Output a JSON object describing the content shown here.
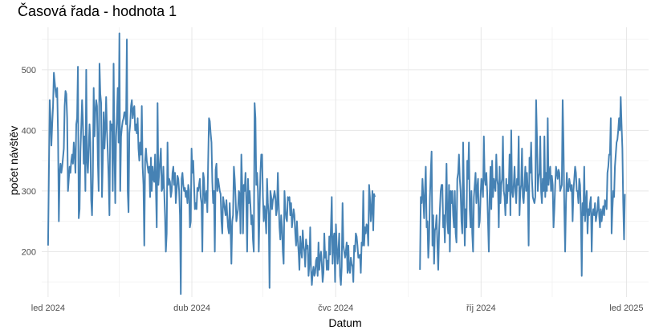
{
  "chart_data": {
    "type": "line",
    "title": "Časová řada - hodnota 1",
    "xlabel": "Datum",
    "ylabel": "počet návštěv",
    "x_ticks": [
      "led 2024",
      "dub 2024",
      "čvc 2024",
      "říj 2024",
      "led 2025"
    ],
    "y_ticks": [
      200,
      300,
      400,
      500
    ],
    "ylim": [
      125,
      570
    ],
    "xlim": [
      "2023-12-28",
      "2025-01-15"
    ],
    "grid": true,
    "colors": {
      "line": "#4682B4"
    },
    "series": [
      {
        "gap_after": "2024-07-26",
        "resume": "2024-08-23",
        "x_start": "2024-01-01",
        "x_end": "2024-12-31",
        "values": [
          210,
          330,
          450,
          420,
          375,
          410,
          440,
          495,
          480,
          465,
          455,
          470,
          395,
          250,
          330,
          345,
          330,
          340,
          355,
          370,
          440,
          465,
          460,
          420,
          300,
          320,
          340,
          330,
          350,
          360,
          345,
          380,
          360,
          330,
          410,
          420,
          505,
          255,
          270,
          365,
          405,
          450,
          415,
          345,
          390,
          300,
          500,
          350,
          330,
          370,
          410,
          380,
          285,
          260,
          325,
          470,
          390,
          430,
          450,
          440,
          350,
          300,
          510,
          460,
          445,
          290,
          350,
          430,
          370,
          400,
          455,
          400,
          365,
          320,
          260,
          415,
          400,
          410,
          300,
          510,
          370,
          280,
          390,
          420,
          470,
          380,
          560,
          300,
          390,
          405,
          415,
          420,
          430,
          430,
          410,
          550,
          300,
          265,
          395,
          410,
          440,
          450,
          420,
          435,
          440,
          400,
          410,
          395,
          420,
          370,
          350,
          380,
          360,
          440,
          340,
          310,
          210,
          350,
          370,
          350,
          340,
          330,
          340,
          290,
          355,
          300,
          340,
          320,
          315,
          360,
          305,
          240,
          445,
          310,
          330,
          350,
          370,
          300,
          305,
          340,
          300,
          260,
          200,
          230,
          380,
          310,
          320,
          315,
          290,
          300,
          330,
          340,
          310,
          330,
          280,
          300,
          325,
          320,
          300,
          260,
          130,
          320,
          330,
          310,
          300,
          305,
          290,
          300,
          280,
          310,
          300,
          240,
          250,
          370,
          330,
          350,
          310,
          270,
          280,
          270,
          305,
          300,
          310,
          320,
          290,
          280,
          200,
          330,
          320,
          280,
          290,
          300,
          265,
          350,
          420,
          415,
          395,
          380,
          315,
          280,
          300,
          200,
          335,
          345,
          300,
          320,
          310,
          300,
          295,
          250,
          230,
          290,
          280,
          270,
          260,
          285,
          260,
          240,
          230,
          280,
          240,
          180,
          250,
          260,
          340,
          320,
          290,
          250,
          260,
          270,
          300,
          295,
          230,
          360,
          310,
          230,
          310,
          300,
          330,
          280,
          200,
          320,
          280,
          300,
          275,
          245,
          260,
          220,
          200,
          445,
          420,
          310,
          330,
          300,
          200,
          270,
          330,
          360,
          360,
          290,
          250,
          275,
          260,
          230,
          320,
          280,
          260,
          140,
          300,
          290,
          270,
          285,
          290,
          300,
          290,
          260,
          270,
          330,
          280,
          240,
          220,
          260,
          240,
          200,
          180,
          300,
          270,
          255,
          250,
          290,
          285,
          290,
          260,
          280,
          240,
          255,
          270,
          260,
          230,
          210,
          250,
          220,
          200,
          170,
          225,
          205,
          190,
          235,
          210,
          200,
          175,
          220,
          205,
          210,
          160,
          180,
          240,
          170,
          145,
          165,
          175,
          160,
          165,
          185,
          190,
          160,
          215,
          170,
          190,
          200,
          180,
          150,
          165,
          230,
          190,
          200,
          170,
          185,
          170,
          225,
          195,
          240,
          290,
          180,
          220,
          230,
          150,
          245,
          210,
          180,
          200,
          230,
          160,
          145,
          175,
          280,
          210,
          200,
          190,
          200,
          215,
          165,
          210,
          170,
          165,
          190,
          180,
          175,
          150,
          210,
          200,
          230,
          225,
          210,
          190,
          190,
          195,
          165,
          215,
          210,
          300,
          210,
          240,
          230,
          245,
          240,
          210,
          310,
          290,
          250,
          270,
          300,
          235,
          295,
          290,
          170,
          290,
          280,
          320,
          290,
          255,
          300,
          340,
          240,
          250,
          190,
          220,
          290,
          330,
          365,
          210,
          260,
          180,
          235,
          240,
          260,
          210,
          170,
          230,
          270,
          300,
          310,
          310,
          240,
          260,
          215,
          280,
          345,
          250,
          230,
          310,
          200,
          300,
          280,
          300,
          260,
          240,
          300,
          230,
          215,
          320,
          330,
          360,
          320,
          300,
          250,
          230,
          380,
          300,
          210,
          270,
          240,
          350,
          320,
          380,
          270,
          240,
          300,
          230,
          200,
          290,
          310,
          330,
          280,
          305,
          320,
          240,
          250,
          290,
          320,
          310,
          290,
          390,
          320,
          310,
          330,
          300,
          250,
          200,
          290,
          340,
          270,
          350,
          290,
          320,
          310,
          300,
          360,
          320,
          310,
          240,
          340,
          280,
          310,
          320,
          390,
          300,
          290,
          260,
          320,
          280,
          310,
          300,
          360,
          260,
          400,
          300,
          290,
          310,
          340,
          300,
          280,
          320,
          310,
          390,
          260,
          300,
          310,
          370,
          290,
          280,
          310,
          340,
          300,
          330,
          300,
          210,
          355,
          330,
          380,
          320,
          290,
          285,
          280,
          290,
          450,
          390,
          300,
          320,
          330,
          390,
          300,
          280,
          320,
          300,
          390,
          290,
          330,
          300,
          420,
          310,
          330,
          340,
          300,
          325,
          310,
          240,
          270,
          310,
          340,
          330,
          320,
          335,
          330,
          300,
          305,
          310,
          450,
          380,
          270,
          200,
          280,
          330,
          300,
          300,
          320,
          310,
          300,
          310,
          250,
          300,
          320,
          340,
          330,
          300,
          300,
          280,
          320,
          310,
          260,
          160,
          280,
          260,
          340,
          250,
          280,
          300,
          230,
          270,
          260,
          280,
          290,
          200,
          260,
          270,
          260,
          280,
          250,
          260,
          270,
          290,
          260,
          240,
          270,
          250,
          265,
          275,
          260,
          285,
          280,
          270,
          330,
          340,
          360,
          360,
          420,
          230,
          270,
          300,
          290,
          340,
          360,
          380,
          385,
          400,
          420,
          400,
          455,
          410,
          370,
          280,
          220,
          295
        ]
      }
    ]
  }
}
